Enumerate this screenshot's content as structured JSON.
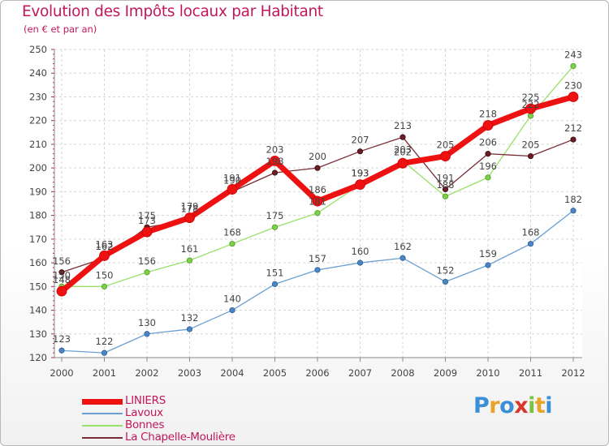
{
  "chart_data": {
    "type": "line",
    "title": "Evolution des Impôts locaux par Habitant",
    "subtitle": "(en € et par an)",
    "xlabel": "",
    "ylabel": "",
    "x": [
      "2000",
      "2001",
      "2002",
      "2003",
      "2004",
      "2005",
      "2006",
      "2007",
      "2008",
      "2009",
      "2010",
      "2011",
      "2012"
    ],
    "ylim": [
      120,
      250
    ],
    "yticks": [
      120,
      130,
      140,
      150,
      160,
      170,
      180,
      190,
      200,
      210,
      220,
      230,
      240,
      250
    ],
    "grid": true,
    "legend_position": "bottom-left",
    "series": [
      {
        "name": "LINIERS",
        "color": "#ee1111",
        "values": [
          148,
          163,
          173,
          179,
          191,
          203,
          186,
          193,
          202,
          205,
          218,
          225,
          230
        ],
        "labels": [
          "148",
          "163",
          "173",
          "179",
          "191",
          "203",
          "186",
          "193",
          "202",
          "205",
          "218",
          "225",
          "230"
        ]
      },
      {
        "name": "Lavoux",
        "color": "#6aa0d2",
        "values": [
          123,
          122,
          130,
          132,
          140,
          151,
          157,
          160,
          162,
          152,
          159,
          168,
          182
        ],
        "labels": [
          "123",
          "122",
          "130",
          "132",
          "140",
          "151",
          "157",
          "160",
          "162",
          "152",
          "159",
          "168",
          "182"
        ]
      },
      {
        "name": "Bonnes",
        "color": "#98e06a",
        "values": [
          150,
          150,
          156,
          161,
          168,
          175,
          181,
          193,
          203,
          188,
          196,
          222,
          243
        ],
        "labels": [
          "150",
          "150",
          "156",
          "161",
          "168",
          "175",
          "181",
          "193",
          "203",
          "188",
          "196",
          "222",
          "243"
        ]
      },
      {
        "name": "La Chapelle-Moulière",
        "color": "#7a2b35",
        "values": [
          156,
          162,
          175,
          178,
          190,
          198,
          200,
          207,
          213,
          191,
          206,
          205,
          212
        ],
        "labels": [
          "156",
          "162",
          "175",
          "178",
          "190",
          "198",
          "200",
          "207",
          "213",
          "191",
          "206",
          "205",
          "212"
        ]
      }
    ]
  },
  "brand": {
    "letters": [
      "P",
      "r",
      "o",
      "x",
      "i",
      "t",
      "i"
    ],
    "colors": [
      "#3a8fd6",
      "#e8a42a",
      "#3a8fd6",
      "#d8382a",
      "#7cc242",
      "#e8a42a",
      "#3a8fd6"
    ]
  }
}
